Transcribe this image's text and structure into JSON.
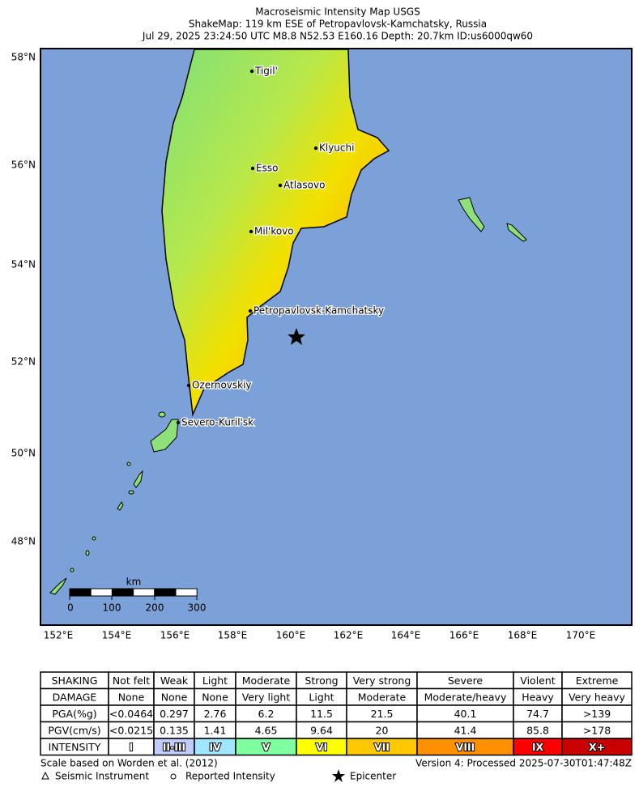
{
  "header": {
    "title": [
      "Macroseismic Intensity Map USGS",
      "ShakeMap: 119 km ESE of Petropavlovsk-Kamchatsky, Russia",
      "Jul 29, 2025 23:24:50 UTC M8.8 N52.53 E160.16 Depth: 20.7km ID:us6000qw60"
    ]
  },
  "map": {
    "lat_labels": [
      "58°N",
      "56°N",
      "54°N",
      "52°N",
      "50°N",
      "48°N"
    ],
    "lon_labels": [
      "152°E",
      "154°E",
      "156°E",
      "158°E",
      "160°E",
      "162°E",
      "164°E",
      "166°E",
      "168°E",
      "170°E"
    ],
    "cities": [
      "Tigil'",
      "Klyuchi",
      "Esso",
      "Atlasovo",
      "Mil'kovo",
      "Petropavlovsk-Kamchatsky",
      "Ozernovskiy",
      "Severo-Kuril'sk"
    ],
    "scale_bar": {
      "unit": "km",
      "ticks": [
        "0",
        "100",
        "200",
        "300"
      ]
    }
  },
  "legend_table": {
    "rows": [
      [
        "SHAKING",
        "Not felt",
        "Weak",
        "Light",
        "Moderate",
        "Strong",
        "Very strong",
        "Severe",
        "Violent",
        "Extreme"
      ],
      [
        "DAMAGE",
        "None",
        "None",
        "None",
        "Very light",
        "Light",
        "Moderate",
        "Moderate/heavy",
        "Heavy",
        "Very heavy"
      ],
      [
        "PGA(%g)",
        "<0.0464",
        "0.297",
        "2.76",
        "6.2",
        "11.5",
        "21.5",
        "40.1",
        "74.7",
        ">139"
      ],
      [
        "PGV(cm/s)",
        "<0.0215",
        "0.135",
        "1.41",
        "4.65",
        "9.64",
        "20",
        "41.4",
        "85.8",
        ">178"
      ],
      [
        "INTENSITY",
        "I",
        "II-III",
        "IV",
        "V",
        "VI",
        "VII",
        "VIII",
        "IX",
        "X+"
      ]
    ]
  },
  "footer": {
    "scale_note": "Scale based on Worden et al. (2012)",
    "version": "Version 4: Processed 2025-07-30T01:47:48Z",
    "symbols": [
      "Seismic Instrument",
      "Reported Intensity",
      "Epicenter"
    ]
  }
}
